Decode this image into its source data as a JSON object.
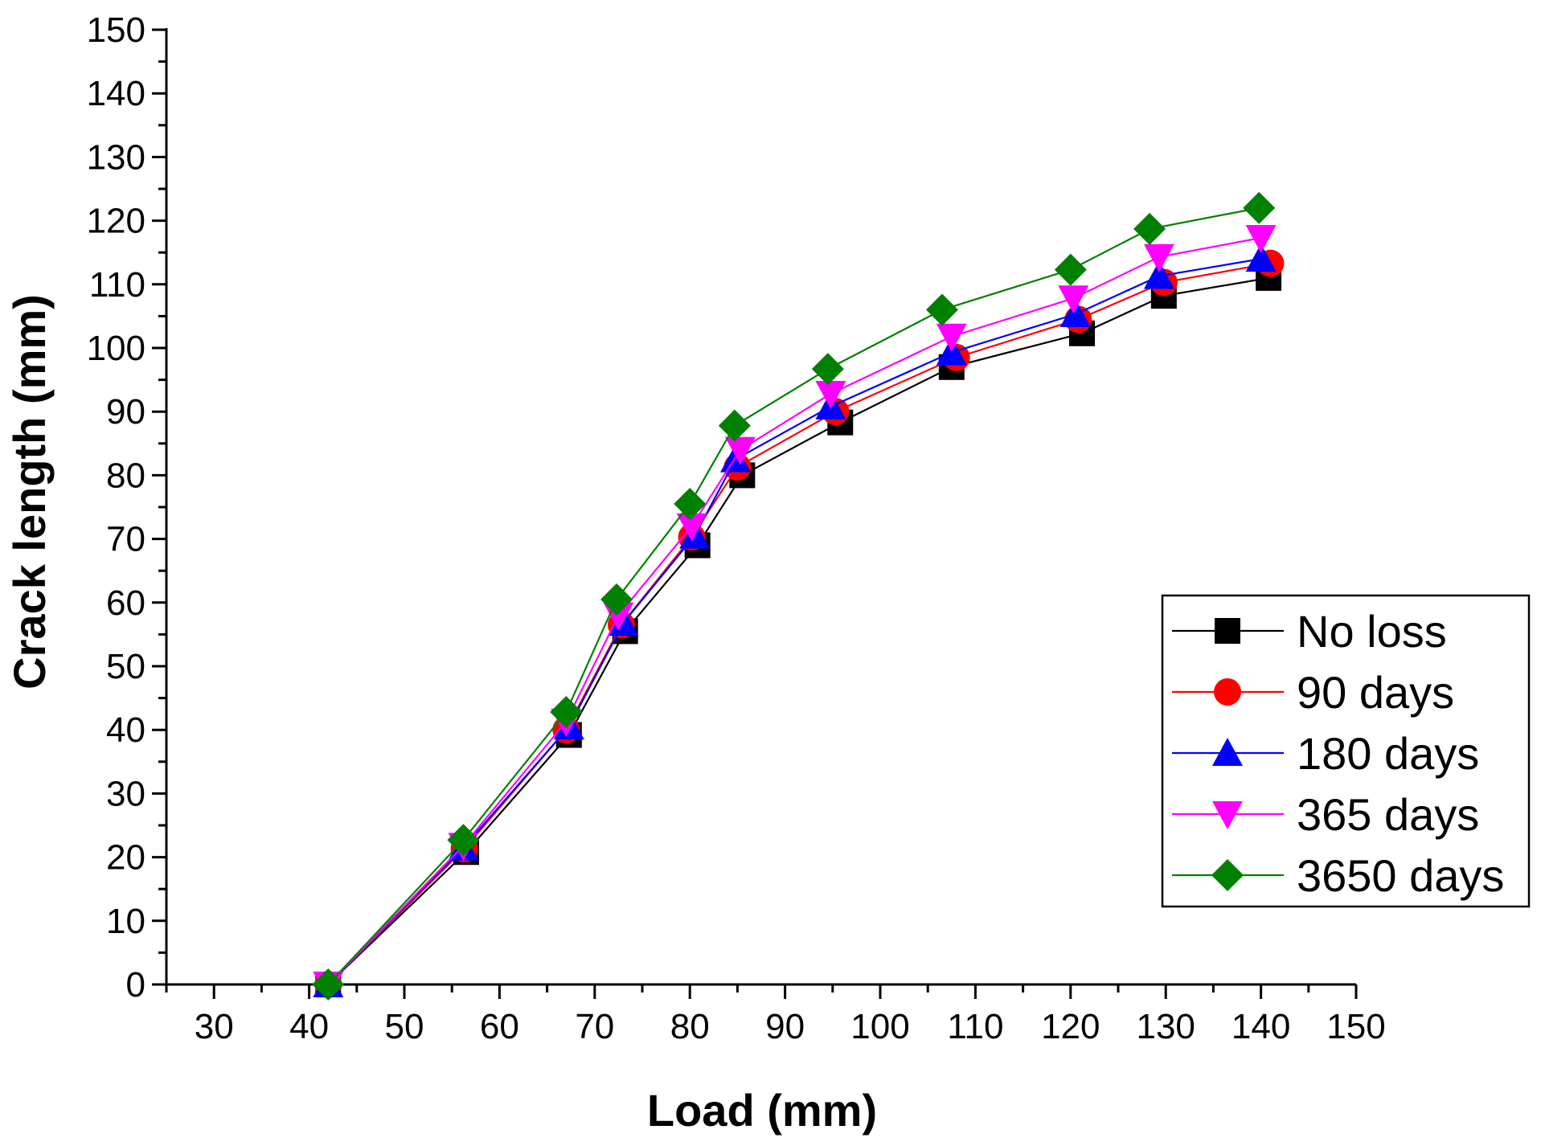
{
  "chart_data": {
    "type": "line",
    "title": "",
    "xlabel": "Load (mm)",
    "ylabel": "Crack length (mm)",
    "xlim": [
      25,
      150
    ],
    "ylim": [
      0,
      150
    ],
    "xticks": [
      30,
      40,
      50,
      60,
      70,
      80,
      90,
      100,
      110,
      120,
      130,
      140,
      150
    ],
    "yticks": [
      0,
      10,
      20,
      30,
      40,
      50,
      60,
      70,
      80,
      90,
      100,
      110,
      120,
      130,
      140,
      150
    ],
    "grid": false,
    "legend_position": "right",
    "series": [
      {
        "name": "No loss",
        "color": "#000000",
        "marker": "square",
        "x": [
          42,
          56.5,
          67.3,
          73.2,
          80.8,
          85.5,
          95.8,
          107.5,
          121.2,
          129.8,
          140.8
        ],
        "y": [
          0,
          20.8,
          39.2,
          55.5,
          69,
          80,
          88.3,
          97,
          102.3,
          108.2,
          111
        ]
      },
      {
        "name": "90 days",
        "color": "#ff0000",
        "marker": "circle",
        "x": [
          42,
          56.3,
          67,
          72.8,
          80.2,
          85,
          95.3,
          108,
          120.8,
          129.8,
          141
        ],
        "y": [
          0,
          21.3,
          40,
          56.5,
          70.3,
          81.3,
          90,
          98.5,
          104.5,
          110.3,
          113.3
        ]
      },
      {
        "name": "180 days",
        "color": "#0000ff",
        "marker": "triangle-up",
        "x": [
          42,
          56.2,
          67.3,
          73,
          80.5,
          84.8,
          94.8,
          107.5,
          120.5,
          129.3,
          140
        ],
        "y": [
          0,
          21.5,
          40.5,
          56.8,
          70.5,
          82.5,
          90.8,
          99.3,
          105.3,
          111.3,
          114
        ]
      },
      {
        "name": "365 days",
        "color": "#ff00ff",
        "marker": "triangle-down",
        "x": [
          42,
          56.2,
          67,
          72.5,
          80.2,
          85.3,
          94.8,
          107.5,
          120.3,
          129.3,
          140
        ],
        "y": [
          0,
          21.8,
          41.3,
          58,
          72,
          84,
          92.8,
          101.8,
          107.8,
          114.3,
          117.3
        ]
      },
      {
        "name": "3650 days",
        "color": "#008000",
        "marker": "diamond",
        "x": [
          42,
          56.2,
          67,
          72.3,
          80,
          84.7,
          94.5,
          106.5,
          120,
          128.3,
          139.8
        ],
        "y": [
          0,
          22.7,
          42.8,
          60.5,
          75.5,
          87.8,
          96.7,
          106,
          112.3,
          118.7,
          122
        ]
      }
    ]
  }
}
